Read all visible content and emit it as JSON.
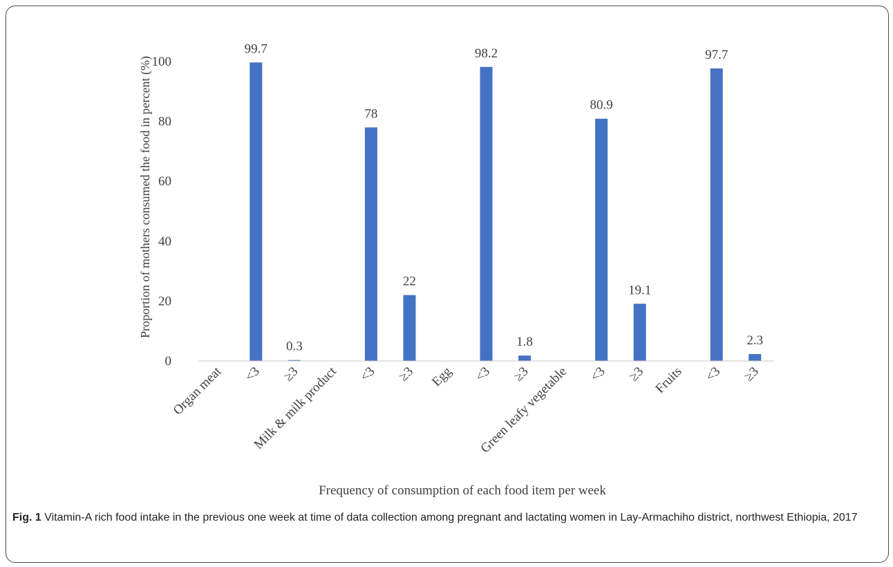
{
  "chart_data": {
    "type": "bar",
    "categories": [
      "Organ meat",
      "<3",
      "≥3",
      "Milk & milk product",
      "<3",
      "≥3",
      "Egg",
      "<3",
      "≥3",
      "Green leafy vegetable",
      "<3",
      "≥3",
      "Fruits",
      "<3",
      "≥3"
    ],
    "values": [
      null,
      99.7,
      0.3,
      null,
      78,
      22,
      null,
      98.2,
      1.8,
      null,
      80.9,
      19.1,
      null,
      97.7,
      2.3
    ],
    "data_labels": [
      "",
      "99.7",
      "0.3",
      "",
      "78",
      "22",
      "",
      "98.2",
      "1.8",
      "",
      "80.9",
      "19.1",
      "",
      "97.7",
      "2.3"
    ],
    "ylabel": "Proportion of mothers consumed the food in  percent (%)",
    "xlabel": "Frequency  of consumption  of each food item  per week",
    "ylim": [
      0,
      100
    ],
    "yticks": [
      "0",
      "20",
      "40",
      "60",
      "80",
      "100"
    ],
    "bar_color": "#4472c4",
    "grid": false
  },
  "caption": {
    "label": "Fig. 1",
    "text": "Vitamin-A rich food intake in the previous one week at time of data collection among pregnant and lactating women in Lay-Armachiho district, northwest Ethiopia, 2017"
  }
}
